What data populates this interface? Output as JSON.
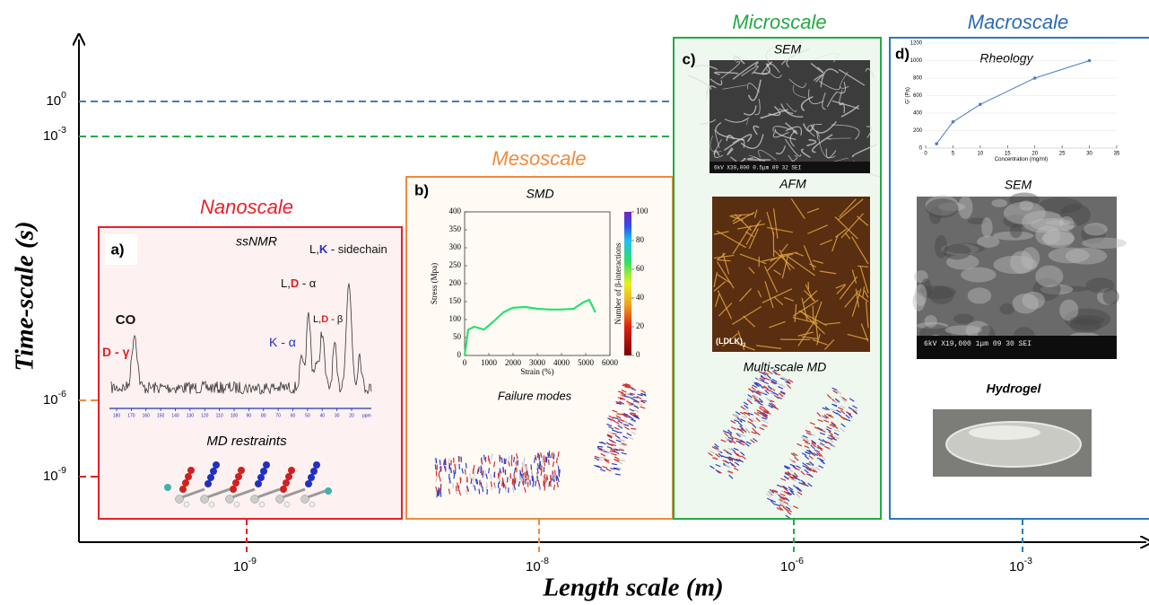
{
  "axes": {
    "y_label": "Time-scale (s)",
    "x_label": "Length scale (m)",
    "y_ticks": [
      {
        "base": "10",
        "exponent": 0,
        "color": "#4a76c0"
      },
      {
        "base": "10",
        "exponent": -3,
        "color": "#22aa44"
      },
      {
        "base": "10",
        "exponent": -6,
        "color": "#f08a3c"
      },
      {
        "base": "10",
        "exponent": -9,
        "color": "#e02020"
      }
    ],
    "x_ticks": [
      {
        "base": "10",
        "exponent": -9,
        "color": "#e02020"
      },
      {
        "base": "10",
        "exponent": -8,
        "color": "#f08a3c"
      },
      {
        "base": "10",
        "exponent": -6,
        "color": "#22aa44"
      },
      {
        "base": "10",
        "exponent": -3,
        "color": "#2a78c0"
      }
    ]
  },
  "panels": [
    {
      "title": "Nanoscale",
      "color": "#e8202a",
      "letter": "a)",
      "heading": "ssNMR",
      "subheading": "MD restraints",
      "nmr_ticks": [
        "180",
        "170",
        "160",
        "150",
        "140",
        "130",
        "120",
        "110",
        "100",
        "90",
        "80",
        "70",
        "60",
        "50",
        "40",
        "30",
        "20"
      ],
      "nmr_unit": "ppm",
      "peak_labels": [
        {
          "parts": [
            {
              "text": "CO",
              "color": "#111111"
            }
          ]
        },
        {
          "parts": [
            {
              "text": "D",
              "color": "#e02020"
            },
            {
              "text": " - γ",
              "color": "#e02020"
            }
          ]
        },
        {
          "parts": [
            {
              "text": "L,",
              "color": "#111111"
            },
            {
              "text": "D",
              "color": "#e02020"
            },
            {
              "text": " - α",
              "color": "#111111"
            }
          ]
        },
        {
          "parts": [
            {
              "text": "L,",
              "color": "#111111"
            },
            {
              "text": "D",
              "color": "#e02020"
            },
            {
              "text": " - β",
              "color": "#111111"
            }
          ]
        },
        {
          "parts": [
            {
              "text": "K - α",
              "color": "#2030c0"
            }
          ]
        },
        {
          "parts": [
            {
              "text": "L,",
              "color": "#111111"
            },
            {
              "text": "K",
              "color": "#2030c0"
            },
            {
              "text": " - sidechain",
              "color": "#111111"
            }
          ]
        }
      ]
    },
    {
      "title": "Mesoscale",
      "color": "#f08a3c",
      "letter": "b)",
      "heading": "SMD",
      "subheading": "Failure modes"
    },
    {
      "title": "Microscale",
      "color": "#22aa44",
      "letter": "c)",
      "heading": "SEM",
      "caption": "6kV  X30,000  0.5μm      09 32 SEI",
      "afm_heading": "AFM",
      "afm_label": {
        "text": "(LDLK)",
        "subscript": "3"
      },
      "md_heading": "Multi-scale MD"
    },
    {
      "title": "Macroscale",
      "color": "#2a6ab8",
      "letter": "d)",
      "heading": "Rheology",
      "sem_heading": "SEM",
      "caption": "6kV  X19,000   1μm       09 30 SEI",
      "gel_heading": "Hydrogel"
    }
  ],
  "chart_data": [
    {
      "type": "line",
      "x_label": "Strain (%)",
      "y_label": "Stress (Mpa)",
      "x": [
        0,
        150,
        400,
        800,
        1200,
        1600,
        2000,
        2500,
        3000,
        3500,
        4000,
        4500,
        4900,
        5150,
        5400
      ],
      "values": [
        0,
        72,
        80,
        72,
        95,
        120,
        133,
        135,
        130,
        128,
        128,
        130,
        148,
        155,
        120
      ],
      "color": "#28e070",
      "xlim": [
        0,
        6000
      ],
      "xticks": [
        0,
        1000,
        2000,
        3000,
        4000,
        5000,
        6000
      ],
      "ylim": [
        0,
        400
      ],
      "yticks": [
        0,
        50,
        100,
        150,
        200,
        250,
        300,
        350,
        400
      ],
      "colorbar": {
        "label": "Number of β-interactions",
        "lim": [
          0,
          100
        ],
        "ticks": [
          0,
          20,
          40,
          60,
          80,
          100
        ]
      }
    },
    {
      "type": "line",
      "markers": true,
      "grid": true,
      "x_label": "Concentration (mg/ml)",
      "y_label": "G' (Pa)",
      "x": [
        2,
        5,
        10,
        20,
        30
      ],
      "values": [
        50,
        300,
        500,
        800,
        1000
      ],
      "color": "#4a7cc8",
      "xlim": [
        0,
        35
      ],
      "xticks": [
        0,
        5,
        10,
        15,
        20,
        25,
        30,
        35
      ],
      "ylim": [
        0,
        1200
      ],
      "yticks": [
        0,
        200,
        400,
        600,
        800,
        1000,
        1200
      ]
    }
  ]
}
